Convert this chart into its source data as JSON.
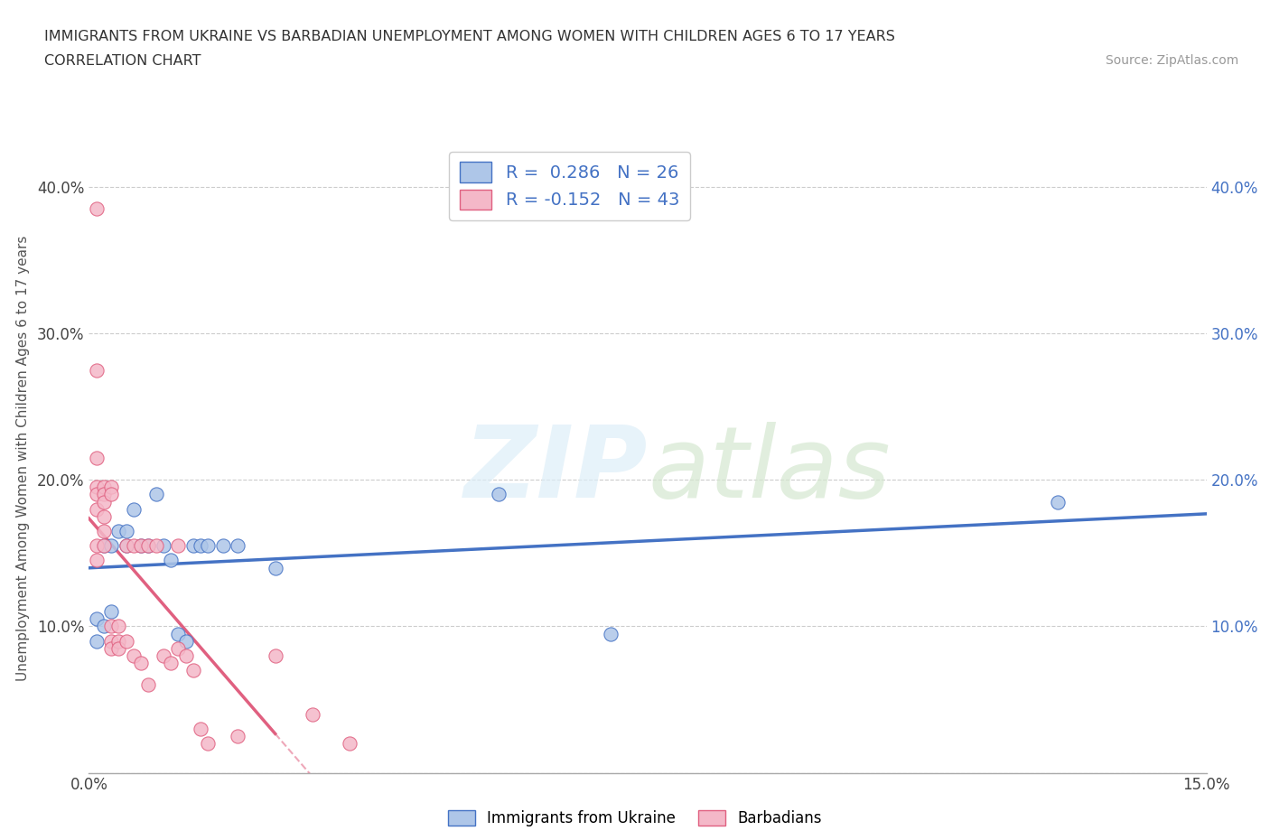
{
  "title_line1": "IMMIGRANTS FROM UKRAINE VS BARBADIAN UNEMPLOYMENT AMONG WOMEN WITH CHILDREN AGES 6 TO 17 YEARS",
  "title_line2": "CORRELATION CHART",
  "source_text": "Source: ZipAtlas.com",
  "ylabel": "Unemployment Among Women with Children Ages 6 to 17 years",
  "xlim": [
    0.0,
    0.15
  ],
  "ylim": [
    0.0,
    0.43
  ],
  "yticks": [
    0.0,
    0.1,
    0.2,
    0.3,
    0.4
  ],
  "yticklabels_left": [
    "",
    "10.0%",
    "20.0%",
    "30.0%",
    "40.0%"
  ],
  "yticklabels_right": [
    "",
    "10.0%",
    "20.0%",
    "30.0%",
    "40.0%"
  ],
  "xticks": [
    0.0,
    0.025,
    0.05,
    0.075,
    0.1,
    0.125,
    0.15
  ],
  "xticklabels": [
    "0.0%",
    "",
    "",
    "",
    "",
    "",
    "15.0%"
  ],
  "ukraine_color": "#aec6e8",
  "ukraine_edge_color": "#4472c4",
  "ukraine_line_color": "#4472c4",
  "barbadian_color": "#f4b8c8",
  "barbadian_edge_color": "#e06080",
  "barbadian_line_color": "#e06080",
  "legend_ukraine_R": "0.286",
  "legend_ukraine_N": "26",
  "legend_barbadian_R": "-0.152",
  "legend_barbadian_N": "43",
  "ukraine_x": [
    0.001,
    0.001,
    0.001,
    0.002,
    0.002,
    0.003,
    0.003,
    0.004,
    0.004,
    0.005,
    0.005,
    0.006,
    0.007,
    0.008,
    0.009,
    0.009,
    0.01,
    0.011,
    0.012,
    0.013,
    0.014,
    0.015,
    0.016,
    0.055,
    0.07,
    0.13
  ],
  "ukraine_y": [
    0.09,
    0.1,
    0.11,
    0.1,
    0.155,
    0.11,
    0.155,
    0.16,
    0.17,
    0.155,
    0.165,
    0.18,
    0.155,
    0.155,
    0.19,
    0.11,
    0.155,
    0.145,
    0.1,
    0.09,
    0.155,
    0.155,
    0.155,
    0.19,
    0.1,
    0.185
  ],
  "barbadian_x": [
    0.001,
    0.001,
    0.001,
    0.001,
    0.001,
    0.001,
    0.001,
    0.002,
    0.002,
    0.002,
    0.002,
    0.002,
    0.003,
    0.003,
    0.003,
    0.003,
    0.004,
    0.004,
    0.004,
    0.005,
    0.005,
    0.006,
    0.006,
    0.007,
    0.007,
    0.008,
    0.008,
    0.009,
    0.01,
    0.011,
    0.012,
    0.012,
    0.013,
    0.014,
    0.015,
    0.016,
    0.018,
    0.02,
    0.022,
    0.025,
    0.028,
    0.03,
    0.035
  ],
  "barbadian_y": [
    0.38,
    0.2,
    0.195,
    0.19,
    0.185,
    0.16,
    0.145,
    0.2,
    0.195,
    0.185,
    0.18,
    0.175,
    0.17,
    0.155,
    0.1,
    0.09,
    0.1,
    0.085,
    0.08,
    0.155,
    0.09,
    0.155,
    0.09,
    0.155,
    0.07,
    0.155,
    0.055,
    0.155,
    0.085,
    0.075,
    0.155,
    0.08,
    0.085,
    0.07,
    0.03,
    0.02,
    0.02,
    0.025,
    0.03,
    0.08,
    0.04,
    0.03,
    0.02
  ],
  "barb_isolated_x": [
    0.001
  ],
  "barb_isolated_y": [
    0.38
  ],
  "barb_outlier2_x": [
    0.001
  ],
  "barb_outlier2_y": [
    0.27
  ]
}
